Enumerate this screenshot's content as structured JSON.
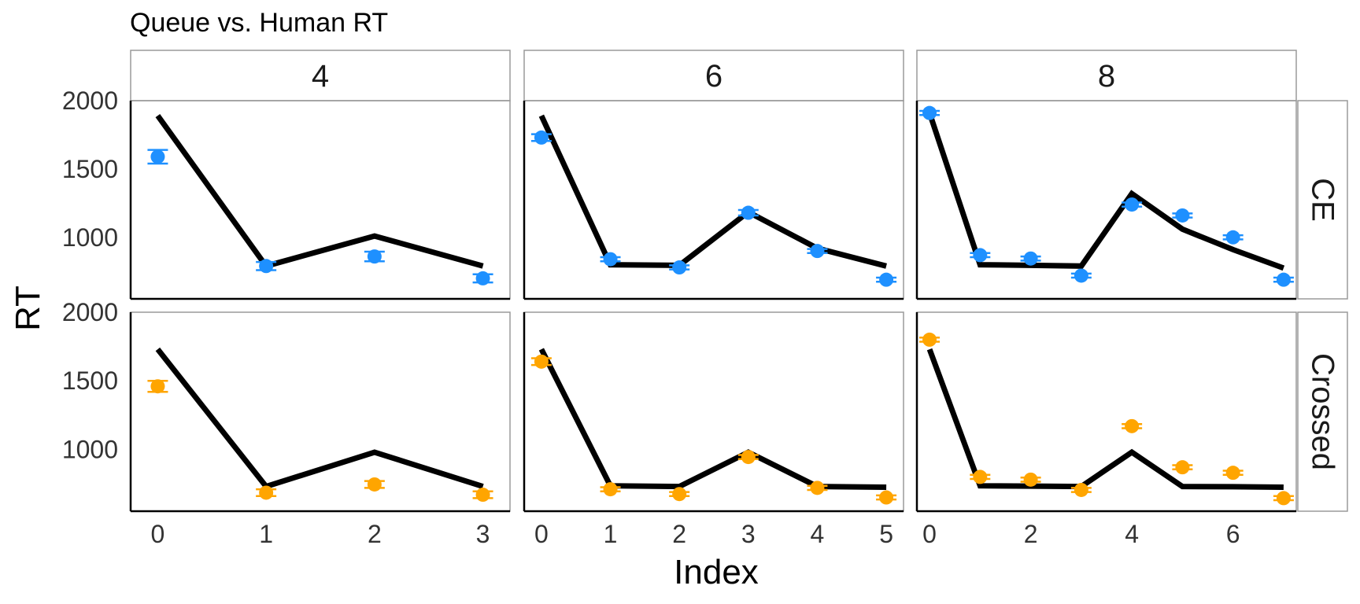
{
  "chart_data": {
    "type": "line",
    "title": "Queue vs. Human RT",
    "xlabel": "Index",
    "ylabel": "RT",
    "ylim": [
      550,
      2000
    ],
    "y_ticks": [
      1000,
      1500,
      2000
    ],
    "grid": false,
    "columns": [
      {
        "label": "4",
        "xlim": [
          -0.25,
          3.25
        ],
        "x_ticks": [
          0,
          1,
          2,
          3
        ]
      },
      {
        "label": "6",
        "xlim": [
          -0.25,
          5.25
        ],
        "x_ticks": [
          0,
          1,
          2,
          3,
          4,
          5
        ]
      },
      {
        "label": "8",
        "xlim": [
          -0.25,
          7.25
        ],
        "x_ticks": [
          0,
          2,
          4,
          6
        ]
      }
    ],
    "rows": [
      {
        "label": "CE",
        "color": "#1E90FF"
      },
      {
        "label": "Crossed",
        "color": "#FFA500"
      }
    ],
    "panels": [
      {
        "row": 0,
        "col": 0,
        "line": {
          "x": [
            0,
            1,
            2,
            3
          ],
          "y": [
            1890,
            790,
            1010,
            790
          ]
        },
        "points": {
          "x": [
            0,
            1,
            2,
            3
          ],
          "y": [
            1590,
            790,
            860,
            700
          ],
          "err": [
            50,
            30,
            35,
            30
          ]
        }
      },
      {
        "row": 0,
        "col": 1,
        "line": {
          "x": [
            0,
            1,
            2,
            3,
            4,
            5
          ],
          "y": [
            1890,
            800,
            795,
            1185,
            920,
            790
          ]
        },
        "points": {
          "x": [
            0,
            1,
            2,
            3,
            4,
            5
          ],
          "y": [
            1730,
            840,
            780,
            1180,
            900,
            690
          ],
          "err": [
            25,
            15,
            15,
            20,
            15,
            15
          ]
        }
      },
      {
        "row": 0,
        "col": 2,
        "line": {
          "x": [
            0,
            1,
            2,
            3,
            4,
            5,
            6,
            7
          ],
          "y": [
            1910,
            800,
            795,
            790,
            1320,
            1060,
            910,
            775
          ]
        },
        "points": {
          "x": [
            0,
            1,
            2,
            3,
            4,
            5,
            6,
            7
          ],
          "y": [
            1910,
            870,
            845,
            720,
            1240,
            1160,
            1000,
            690
          ],
          "err": [
            15,
            15,
            15,
            15,
            15,
            15,
            15,
            15
          ]
        }
      },
      {
        "row": 1,
        "col": 0,
        "line": {
          "x": [
            0,
            1,
            2,
            3
          ],
          "y": [
            1730,
            730,
            980,
            730
          ]
        },
        "points": {
          "x": [
            0,
            1,
            2,
            3
          ],
          "y": [
            1460,
            685,
            745,
            670
          ],
          "err": [
            40,
            25,
            25,
            25
          ]
        }
      },
      {
        "row": 1,
        "col": 1,
        "line": {
          "x": [
            0,
            1,
            2,
            3,
            4,
            5
          ],
          "y": [
            1730,
            735,
            730,
            980,
            730,
            725
          ]
        },
        "points": {
          "x": [
            0,
            1,
            2,
            3,
            4,
            5
          ],
          "y": [
            1640,
            710,
            675,
            945,
            720,
            650
          ],
          "err": [
            25,
            15,
            15,
            15,
            15,
            15
          ]
        }
      },
      {
        "row": 1,
        "col": 2,
        "line": {
          "x": [
            0,
            1,
            2,
            3,
            4,
            5,
            6,
            7
          ],
          "y": [
            1730,
            735,
            733,
            730,
            980,
            730,
            728,
            725
          ]
        },
        "points": {
          "x": [
            0,
            1,
            2,
            3,
            4,
            5,
            6,
            7
          ],
          "y": [
            1800,
            800,
            780,
            705,
            1170,
            870,
            830,
            645
          ],
          "err": [
            15,
            15,
            15,
            15,
            15,
            15,
            15,
            15
          ]
        }
      }
    ]
  }
}
